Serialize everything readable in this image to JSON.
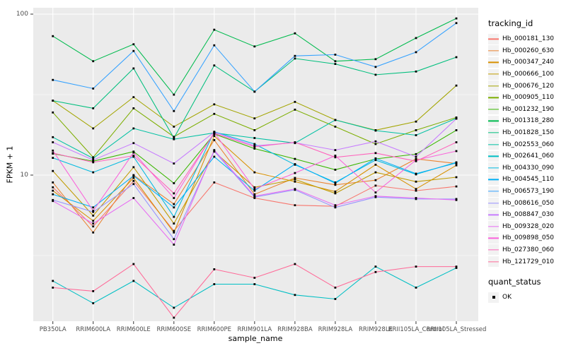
{
  "chart_data": {
    "type": "line",
    "title": "",
    "xlabel": "sample_name",
    "ylabel": "FPKM + 1",
    "y_scale": "log10",
    "y_ticks": [
      10,
      100
    ],
    "y_minor_gridlines": [
      3.1623,
      31.623
    ],
    "ylim": [
      1.25,
      110
    ],
    "grid": "on",
    "legend_position": "right",
    "point_marker": {
      "shape": "square",
      "color": "#000000"
    },
    "categories": [
      "PB350LA",
      "RRIM600LA",
      "RRIM600LE",
      "RRIM600SE",
      "RRIM600PE",
      "RRIM901LA",
      "RRIM928BA",
      "RRIM928LA",
      "RRIM928LE",
      "RRII105LA_Control",
      "RRII105LA_Stressed"
    ],
    "series": [
      {
        "name": "Hb_000181_130",
        "color": "#F8766D",
        "values": [
          8.4,
          4.8,
          9.2,
          4.5,
          9.0,
          7.2,
          6.5,
          6.4,
          8.6,
          8.0,
          8.5
        ]
      },
      {
        "name": "Hb_000260_630",
        "color": "#EA8331",
        "values": [
          9.0,
          4.4,
          10.0,
          6.6,
          16.5,
          7.6,
          9.6,
          8.7,
          9.3,
          12.6,
          11.8
        ]
      },
      {
        "name": "Hb_000347_240",
        "color": "#D89000",
        "values": [
          8.0,
          5.2,
          9.6,
          4.4,
          17.5,
          10.4,
          9.1,
          7.9,
          11.6,
          8.2,
          11.5
        ]
      },
      {
        "name": "Hb_000666_100",
        "color": "#C09B00",
        "values": [
          10.6,
          5.6,
          11.2,
          5.0,
          14.0,
          8.4,
          9.4,
          7.7,
          10.4,
          9.1,
          9.7
        ]
      },
      {
        "name": "Hb_000676_120",
        "color": "#A3A500",
        "values": [
          29.0,
          19.5,
          30.5,
          20.0,
          27.5,
          22.5,
          28.5,
          22.0,
          19.0,
          21.5,
          36.0
        ]
      },
      {
        "name": "Hb_000905_110",
        "color": "#7CAE00",
        "values": [
          24.5,
          12.9,
          26.0,
          17.3,
          24.0,
          19.0,
          25.5,
          20.0,
          15.6,
          19.0,
          22.8
        ]
      },
      {
        "name": "Hb_001232_190",
        "color": "#39B600",
        "values": [
          13.6,
          12.2,
          14.0,
          8.9,
          18.0,
          14.6,
          12.6,
          10.8,
          12.6,
          13.5,
          19.0
        ]
      },
      {
        "name": "Hb_001318_280",
        "color": "#00BB4E",
        "values": [
          73,
          51,
          65,
          31.6,
          80,
          63,
          76,
          51,
          52.5,
          71,
          94
        ]
      },
      {
        "name": "Hb_001828_150",
        "color": "#00BF7D",
        "values": [
          29,
          26,
          46,
          17.0,
          48,
          33,
          53,
          49,
          42,
          44,
          54
        ]
      },
      {
        "name": "Hb_002553_060",
        "color": "#00C1A3",
        "values": [
          17.2,
          12.7,
          19.5,
          16.7,
          18.3,
          17.0,
          15.8,
          22.0,
          18.9,
          17.7,
          22.5
        ]
      },
      {
        "name": "Hb_002641_060",
        "color": "#00BFC4",
        "values": [
          2.2,
          1.6,
          2.2,
          1.5,
          2.1,
          2.1,
          1.8,
          1.7,
          2.7,
          2.0,
          2.65
        ]
      },
      {
        "name": "Hb_004330_090",
        "color": "#00BAE0",
        "values": [
          12.8,
          10.4,
          13.0,
          5.5,
          18.6,
          15.6,
          11.6,
          9.0,
          12.4,
          10.1,
          12.0
        ]
      },
      {
        "name": "Hb_004545_110",
        "color": "#00B0F6",
        "values": [
          7.6,
          6.3,
          9.9,
          6.3,
          13.0,
          8.0,
          11.7,
          8.9,
          12.7,
          10.2,
          11.9
        ]
      },
      {
        "name": "Hb_006573_190",
        "color": "#35A2FF",
        "values": [
          39,
          34.5,
          59,
          25,
          64,
          33,
          55,
          56,
          47,
          58,
          88
        ]
      },
      {
        "name": "Hb_008616_050",
        "color": "#9590FF",
        "values": [
          7.0,
          5.9,
          8.8,
          4.0,
          14.1,
          7.3,
          8.1,
          6.3,
          7.3,
          7.1,
          7.1
        ]
      },
      {
        "name": "Hb_008847_030",
        "color": "#C77CFF",
        "values": [
          16.0,
          12.4,
          15.8,
          11.8,
          18.5,
          15.2,
          15.9,
          14.3,
          16.2,
          13.0,
          22.4
        ]
      },
      {
        "name": "Hb_009328_020",
        "color": "#E76BF3",
        "values": [
          6.9,
          5.0,
          7.2,
          3.7,
          14.3,
          7.4,
          8.2,
          6.5,
          7.4,
          7.2,
          7.0
        ]
      },
      {
        "name": "Hb_009898_050",
        "color": "#FA62DB",
        "values": [
          14.2,
          6.0,
          13.8,
          7.2,
          18.4,
          8.2,
          10.3,
          13.2,
          7.8,
          12.4,
          14.1
        ]
      },
      {
        "name": "Hb_027380_060",
        "color": "#FF62BC",
        "values": [
          13.7,
          12.0,
          13.2,
          7.7,
          18.2,
          15.0,
          16.0,
          12.9,
          13.7,
          12.2,
          16.0
        ]
      },
      {
        "name": "Hb_121729_010",
        "color": "#FF6A98",
        "values": [
          2.0,
          1.9,
          2.8,
          1.3,
          2.6,
          2.3,
          2.8,
          2.0,
          2.5,
          2.7,
          2.7
        ]
      }
    ],
    "legend": {
      "color_legend_title": "tracking_id",
      "shape_legend_title": "quant_status",
      "shape_legend_items": [
        {
          "label": "OK",
          "shape": "square",
          "color": "#000000"
        }
      ]
    }
  },
  "colors": {
    "panel_bg": "#EBEBEB",
    "gridline": "#FFFFFF",
    "tick_mark": "#333333",
    "tick_text": "#4D4D4D",
    "legend_key_bg": "#F2F2F2"
  }
}
